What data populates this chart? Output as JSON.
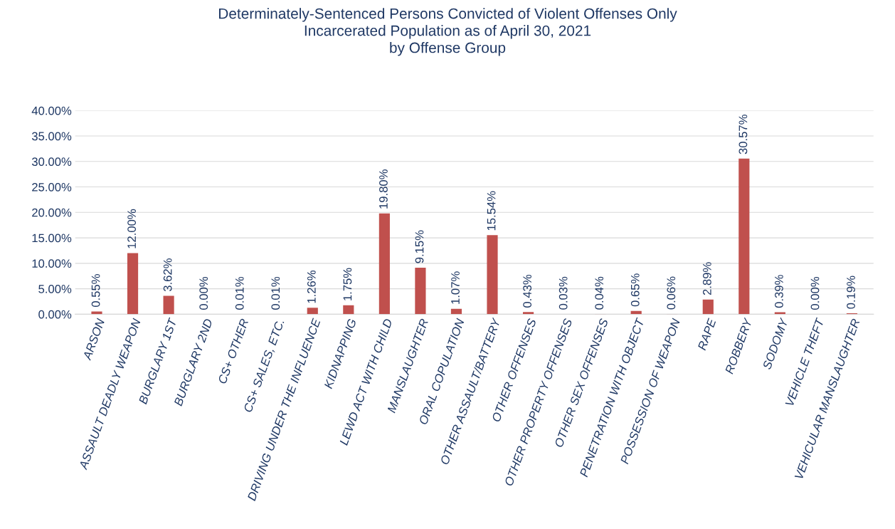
{
  "chart_data": {
    "type": "bar",
    "title": "Determinately-Sentenced Persons Convicted of Violent Offenses Only\nIncarcerated Population as of April 30, 2021\nby Offense Group",
    "categories": [
      "ARSON",
      "ASSAULT DEADLY WEAPON",
      "BURGLARY 1ST",
      "BURGLARY 2ND",
      "CS+ OTHER",
      "CS+ SALES, ETC.",
      "DRIVING UNDER THE INFLUENCE",
      "KIDNAPPING",
      "LEWD ACT WITH CHILD",
      "MANSLAUGHTER",
      "ORAL COPULATION",
      "OTHER ASSAULT/BATTERY",
      "OTHER OFFENSES",
      "OTHER PROPERTY OFFENSES",
      "OTHER SEX OFFENSES",
      "PENETRATION WITH OBJECT",
      "POSSESSION OF WEAPON",
      "RAPE",
      "ROBBERY",
      "SODOMY",
      "VEHICLE THEFT",
      "VEHICULAR MANSLAUGHTER"
    ],
    "values": [
      0.55,
      12.0,
      3.62,
      0.0,
      0.01,
      0.01,
      1.26,
      1.75,
      19.8,
      9.15,
      1.07,
      15.54,
      0.43,
      0.03,
      0.04,
      0.65,
      0.06,
      2.89,
      30.57,
      0.39,
      0.0,
      0.19
    ],
    "value_labels": [
      "0.55%",
      "12.00%",
      "3.62%",
      "0.00%",
      "0.01%",
      "0.01%",
      "1.26%",
      "1.75%",
      "19.80%",
      "9.15%",
      "1.07%",
      "15.54%",
      "0.43%",
      "0.03%",
      "0.04%",
      "0.65%",
      "0.06%",
      "2.89%",
      "30.57%",
      "0.39%",
      "0.00%",
      "0.19%"
    ],
    "color": "#c0504d",
    "ylim": [
      0,
      40
    ],
    "yticks": [
      {
        "value": 0,
        "label": "0.00%"
      },
      {
        "value": 5,
        "label": "5.00%"
      },
      {
        "value": 10,
        "label": "10.00%"
      },
      {
        "value": 15,
        "label": "15.00%"
      },
      {
        "value": 20,
        "label": "20.00%"
      },
      {
        "value": 25,
        "label": "25.00%"
      },
      {
        "value": 30,
        "label": "30.00%"
      },
      {
        "value": 35,
        "label": "35.00%"
      },
      {
        "value": 40,
        "label": "40.00%"
      }
    ],
    "grid": "y"
  }
}
